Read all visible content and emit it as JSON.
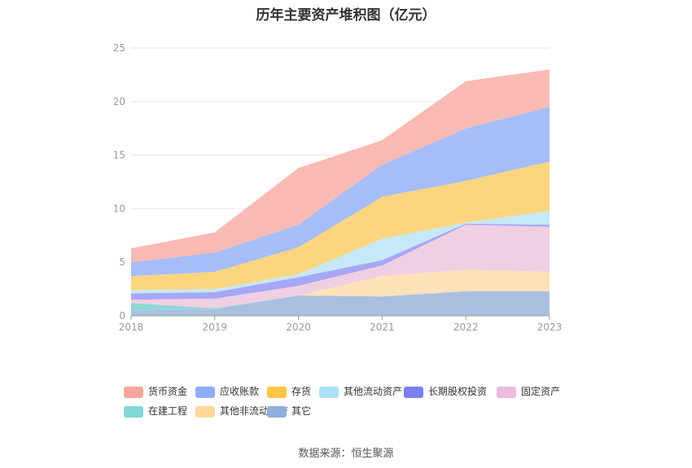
{
  "chart_data": {
    "type": "area",
    "stacked": true,
    "title": "历年主要资产堆积图（亿元）",
    "categories": [
      "2018",
      "2019",
      "2020",
      "2021",
      "2022",
      "2023"
    ],
    "ylim": [
      0,
      25
    ],
    "yticks": [
      0,
      5,
      10,
      15,
      20,
      25
    ],
    "grid": true,
    "legend_position": "bottom",
    "series": [
      {
        "name": "其它",
        "color": "#a9bfe0",
        "values": [
          0.5,
          0.6,
          1.9,
          1.8,
          2.3,
          2.3
        ]
      },
      {
        "name": "其他非流动资产",
        "color": "#fde2b8",
        "values": [
          0.0,
          0.0,
          0.0,
          1.9,
          2.0,
          1.8
        ]
      },
      {
        "name": "在建工程",
        "color": "#8fd7d4",
        "values": [
          0.7,
          0.1,
          0.0,
          0.0,
          0.0,
          0.0
        ]
      },
      {
        "name": "固定资产",
        "color": "#f0cfe3",
        "values": [
          0.3,
          0.9,
          0.9,
          1.0,
          4.2,
          4.2
        ]
      },
      {
        "name": "长期股权投资",
        "color": "#a6a7f5",
        "values": [
          0.6,
          0.6,
          0.8,
          0.5,
          0.1,
          0.2
        ]
      },
      {
        "name": "其他流动资产",
        "color": "#c6e8f8",
        "values": [
          0.3,
          0.3,
          0.3,
          2.0,
          0.1,
          1.3
        ]
      },
      {
        "name": "存货",
        "color": "#fdd57e",
        "values": [
          1.3,
          1.6,
          2.5,
          3.9,
          3.9,
          4.6
        ]
      },
      {
        "name": "应收账款",
        "color": "#a6bdfa",
        "values": [
          1.3,
          1.8,
          2.1,
          3.0,
          4.9,
          5.1
        ]
      },
      {
        "name": "货币资金",
        "color": "#f9bab3",
        "values": [
          1.3,
          1.9,
          5.3,
          2.3,
          4.4,
          3.5
        ]
      }
    ],
    "legend_order": [
      "货币资金",
      "应收账款",
      "存货",
      "其他流动资产",
      "长期股权投资",
      "固定资产",
      "在建工程",
      "其他非流动资产",
      "其它"
    ],
    "legend_colors": {
      "货币资金": "#f8a59c",
      "应收账款": "#8daefb",
      "存货": "#fcc546",
      "其他流动资产": "#ade0f9",
      "长期股权投资": "#7b7ff0",
      "固定资产": "#ebbbdb",
      "在建工程": "#82d7d6",
      "其他非流动资产": "#fdd99c",
      "其它": "#8fafdc"
    }
  },
  "source_text": "数据来源：恒生聚源"
}
